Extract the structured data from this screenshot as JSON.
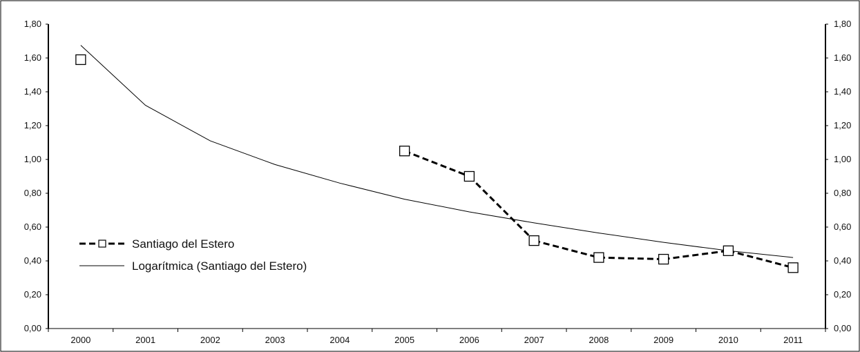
{
  "chart_data": {
    "type": "line",
    "title": "",
    "xlabel": "",
    "ylabel": "",
    "categories": [
      "2000",
      "2001",
      "2002",
      "2003",
      "2004",
      "2005",
      "2006",
      "2007",
      "2008",
      "2009",
      "2010",
      "2011"
    ],
    "ylim": [
      0,
      1.8
    ],
    "y_ticks": [
      "0,00",
      "0,20",
      "0,40",
      "0,60",
      "0,80",
      "1,00",
      "1,20",
      "1,40",
      "1,60",
      "1,80"
    ],
    "y_ticks_right": [
      "0,00",
      "0,20",
      "0,40",
      "0,60",
      "0,80",
      "1,00",
      "1,20",
      "1,40",
      "1,60",
      "1,80"
    ],
    "grid": false,
    "legend_position": "left, lower-middle",
    "series": [
      {
        "name": "Santiago del Estero",
        "style": "dashed-with-square-markers",
        "color": "#000000",
        "values": [
          1.59,
          null,
          null,
          null,
          null,
          1.05,
          0.9,
          0.52,
          0.42,
          0.41,
          0.46,
          0.36
        ]
      },
      {
        "name": "Logarítmica (Santiago del Estero)",
        "style": "thin-solid-trendline",
        "color": "#000000",
        "values": [
          1.675,
          1.32,
          1.11,
          0.97,
          0.86,
          0.765,
          0.69,
          0.625,
          0.565,
          0.51,
          0.46,
          0.42
        ]
      }
    ]
  }
}
